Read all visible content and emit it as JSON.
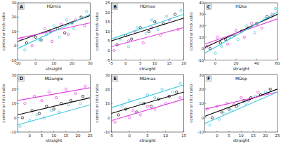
{
  "chart_data": [
    {
      "type": "scatter",
      "panel": "A",
      "title": "HDmix",
      "x_label": "straight",
      "y_label": "control or trick ratio",
      "xlim": [
        -10,
        30
      ],
      "xticks": [
        -10,
        0,
        10,
        20,
        30
      ],
      "ylim": [
        -10,
        30
      ],
      "yticks": [
        -10,
        0,
        10,
        20,
        30
      ],
      "series": [
        {
          "type": "scatter",
          "color": "#000000",
          "marker": "circle",
          "x": [
            -5,
            0,
            3,
            8,
            12,
            16,
            20,
            25
          ],
          "values": [
            2,
            6,
            4,
            10,
            12,
            9,
            16,
            20
          ]
        },
        {
          "type": "scatter",
          "color": "#e040e0",
          "marker": "circle",
          "x": [
            -8,
            -2,
            5,
            9,
            14,
            18,
            22,
            27
          ],
          "values": [
            5,
            0,
            12,
            3,
            15,
            8,
            18,
            14
          ]
        },
        {
          "type": "scatter",
          "color": "#3ec8e0",
          "marker": "circle",
          "x": [
            -6,
            2,
            6,
            10,
            13,
            17,
            21,
            28
          ],
          "values": [
            -3,
            4,
            8,
            14,
            6,
            18,
            12,
            24
          ]
        },
        {
          "type": "line",
          "color": "#000000",
          "x": [
            -10,
            30
          ],
          "values": [
            3,
            21
          ]
        },
        {
          "type": "line",
          "color": "#e040e0",
          "x": [
            -10,
            30
          ],
          "values": [
            5,
            16
          ]
        },
        {
          "type": "line",
          "color": "#3ec8e0",
          "x": [
            -10,
            30
          ],
          "values": [
            -2,
            22
          ]
        }
      ]
    },
    {
      "type": "scatter",
      "panel": "B",
      "title": "HDmax",
      "x_label": "straight",
      "y_label": "control or trick ratio",
      "xlim": [
        -5,
        20
      ],
      "xticks": [
        -5,
        0,
        5,
        10,
        15,
        20
      ],
      "ylim": [
        -5,
        25
      ],
      "yticks": [
        -5,
        0,
        5,
        10,
        15,
        20,
        25
      ],
      "series": [
        {
          "type": "scatter",
          "color": "#000000",
          "marker": "circle",
          "x": [
            -3,
            0,
            2,
            5,
            8,
            10,
            13,
            17
          ],
          "values": [
            3,
            8,
            6,
            12,
            10,
            15,
            14,
            19
          ]
        },
        {
          "type": "scatter",
          "color": "#e040e0",
          "marker": "circle",
          "x": [
            -4,
            1,
            3,
            6,
            9,
            12,
            15,
            18
          ],
          "values": [
            0,
            5,
            10,
            4,
            12,
            8,
            16,
            11
          ]
        },
        {
          "type": "scatter",
          "color": "#3ec8e0",
          "marker": "circle",
          "x": [
            -2,
            1,
            4,
            7,
            9,
            11,
            14,
            19
          ],
          "values": [
            6,
            2,
            12,
            9,
            16,
            11,
            18,
            21
          ]
        },
        {
          "type": "line",
          "color": "#000000",
          "x": [
            -5,
            20
          ],
          "values": [
            5,
            17
          ]
        },
        {
          "type": "line",
          "color": "#e040e0",
          "x": [
            -5,
            20
          ],
          "values": [
            2,
            12
          ]
        },
        {
          "type": "line",
          "color": "#3ec8e0",
          "x": [
            -5,
            20
          ],
          "values": [
            6,
            19
          ]
        }
      ]
    },
    {
      "type": "scatter",
      "panel": "C",
      "title": "HDsa",
      "x_label": "straight",
      "y_label": "control or trick ratio",
      "xlim": [
        -10,
        60
      ],
      "xticks": [
        0,
        20,
        40,
        60
      ],
      "ylim": [
        -10,
        40
      ],
      "yticks": [
        -10,
        0,
        10,
        20,
        30,
        40
      ],
      "series": [
        {
          "type": "scatter",
          "color": "#000000",
          "marker": "circle",
          "x": [
            -5,
            5,
            10,
            18,
            25,
            32,
            40,
            50
          ],
          "values": [
            0,
            5,
            8,
            12,
            15,
            18,
            22,
            28
          ]
        },
        {
          "type": "scatter",
          "color": "#e040e0",
          "marker": "circle",
          "x": [
            -8,
            2,
            12,
            20,
            28,
            35,
            45,
            55
          ],
          "values": [
            2,
            10,
            4,
            16,
            10,
            22,
            18,
            30
          ]
        },
        {
          "type": "scatter",
          "color": "#3ec8e0",
          "marker": "circle",
          "x": [
            0,
            6,
            14,
            22,
            30,
            38,
            48,
            58
          ],
          "values": [
            -4,
            2,
            10,
            8,
            20,
            14,
            26,
            35
          ]
        },
        {
          "type": "line",
          "color": "#000000",
          "x": [
            -10,
            60
          ],
          "values": [
            1,
            30
          ]
        },
        {
          "type": "line",
          "color": "#e040e0",
          "x": [
            -10,
            60
          ],
          "values": [
            4,
            26
          ]
        },
        {
          "type": "line",
          "color": "#3ec8e0",
          "x": [
            -10,
            60
          ],
          "values": [
            -4,
            32
          ]
        }
      ]
    },
    {
      "type": "scatter",
      "panel": "D",
      "title": "MDangle",
      "x_label": "straight",
      "y_label": "control or trick ratio",
      "xlim": [
        -5,
        25
      ],
      "xticks": [
        0,
        5,
        10,
        15,
        20,
        25
      ],
      "ylim": [
        -10,
        30
      ],
      "yticks": [
        -10,
        0,
        10,
        20,
        30
      ],
      "series": [
        {
          "type": "scatter",
          "color": "#000000",
          "marker": "circle",
          "x": [
            -3,
            1,
            4,
            7,
            10,
            13,
            17,
            22
          ],
          "values": [
            0,
            5,
            3,
            8,
            6,
            10,
            12,
            15
          ]
        },
        {
          "type": "scatter",
          "color": "#e040e0",
          "marker": "circle",
          "x": [
            -2,
            2,
            5,
            8,
            11,
            15,
            19,
            23
          ],
          "values": [
            10,
            15,
            12,
            18,
            14,
            20,
            17,
            22
          ]
        },
        {
          "type": "scatter",
          "color": "#3ec8e0",
          "marker": "circle",
          "x": [
            -4,
            0,
            3,
            6,
            9,
            12,
            16,
            21
          ],
          "values": [
            -6,
            -2,
            2,
            0,
            5,
            4,
            9,
            10
          ]
        },
        {
          "type": "line",
          "color": "#000000",
          "x": [
            -5,
            25
          ],
          "values": [
            2,
            14
          ]
        },
        {
          "type": "line",
          "color": "#e040e0",
          "x": [
            -5,
            25
          ],
          "values": [
            12,
            21
          ]
        },
        {
          "type": "line",
          "color": "#3ec8e0",
          "x": [
            -5,
            25
          ],
          "values": [
            -5,
            9
          ]
        }
      ]
    },
    {
      "type": "scatter",
      "panel": "E",
      "title": "MDmax",
      "x_label": "straight",
      "y_label": "control or trick ratio",
      "xlim": [
        -5,
        15
      ],
      "xticks": [
        -5,
        0,
        5,
        10,
        15
      ],
      "ylim": [
        -10,
        30
      ],
      "yticks": [
        -10,
        0,
        10,
        20,
        30
      ],
      "series": [
        {
          "type": "scatter",
          "color": "#000000",
          "marker": "circle",
          "x": [
            -3,
            -1,
            2,
            4,
            6,
            8,
            11,
            13
          ],
          "values": [
            2,
            6,
            4,
            10,
            8,
            13,
            15,
            18
          ]
        },
        {
          "type": "scatter",
          "color": "#e040e0",
          "marker": "circle",
          "x": [
            -4,
            0,
            1,
            3,
            5,
            7,
            10,
            14
          ],
          "values": [
            -3,
            0,
            5,
            2,
            8,
            6,
            10,
            14
          ]
        },
        {
          "type": "scatter",
          "color": "#3ec8e0",
          "marker": "circle",
          "x": [
            -2,
            0,
            3,
            5,
            7,
            9,
            12,
            14
          ],
          "values": [
            8,
            12,
            10,
            16,
            14,
            20,
            18,
            24
          ]
        },
        {
          "type": "line",
          "color": "#000000",
          "x": [
            -5,
            15
          ],
          "values": [
            3,
            18
          ]
        },
        {
          "type": "line",
          "color": "#e040e0",
          "x": [
            -5,
            15
          ],
          "values": [
            -2,
            13
          ]
        },
        {
          "type": "line",
          "color": "#3ec8e0",
          "x": [
            -5,
            15
          ],
          "values": [
            7,
            23
          ]
        }
      ]
    },
    {
      "type": "scatter",
      "panel": "F",
      "title": "MDsp",
      "x_label": "straight",
      "y_label": "control or trick ratio",
      "xlim": [
        -5,
        25
      ],
      "xticks": [
        0,
        5,
        10,
        15,
        20,
        25
      ],
      "ylim": [
        -10,
        30
      ],
      "yticks": [
        -10,
        0,
        10,
        20,
        30
      ],
      "series": [
        {
          "type": "scatter",
          "color": "#000000",
          "marker": "circle",
          "x": [
            -2,
            2,
            5,
            8,
            11,
            14,
            18,
            22
          ],
          "values": [
            0,
            4,
            6,
            8,
            12,
            14,
            16,
            20
          ]
        },
        {
          "type": "scatter",
          "color": "#e040e0",
          "marker": "circle",
          "x": [
            -4,
            0,
            4,
            7,
            10,
            13,
            17,
            21
          ],
          "values": [
            6,
            8,
            10,
            9,
            14,
            12,
            18,
            17
          ]
        },
        {
          "type": "scatter",
          "color": "#3ec8e0",
          "marker": "circle",
          "x": [
            -3,
            1,
            3,
            6,
            9,
            12,
            16,
            20
          ],
          "values": [
            -5,
            -1,
            3,
            5,
            9,
            10,
            15,
            18
          ]
        },
        {
          "type": "line",
          "color": "#000000",
          "x": [
            -5,
            25
          ],
          "values": [
            1,
            20
          ]
        },
        {
          "type": "line",
          "color": "#e040e0",
          "x": [
            -5,
            25
          ],
          "values": [
            6,
            18
          ]
        },
        {
          "type": "line",
          "color": "#3ec8e0",
          "x": [
            -5,
            25
          ],
          "values": [
            -4,
            18
          ]
        }
      ]
    }
  ]
}
